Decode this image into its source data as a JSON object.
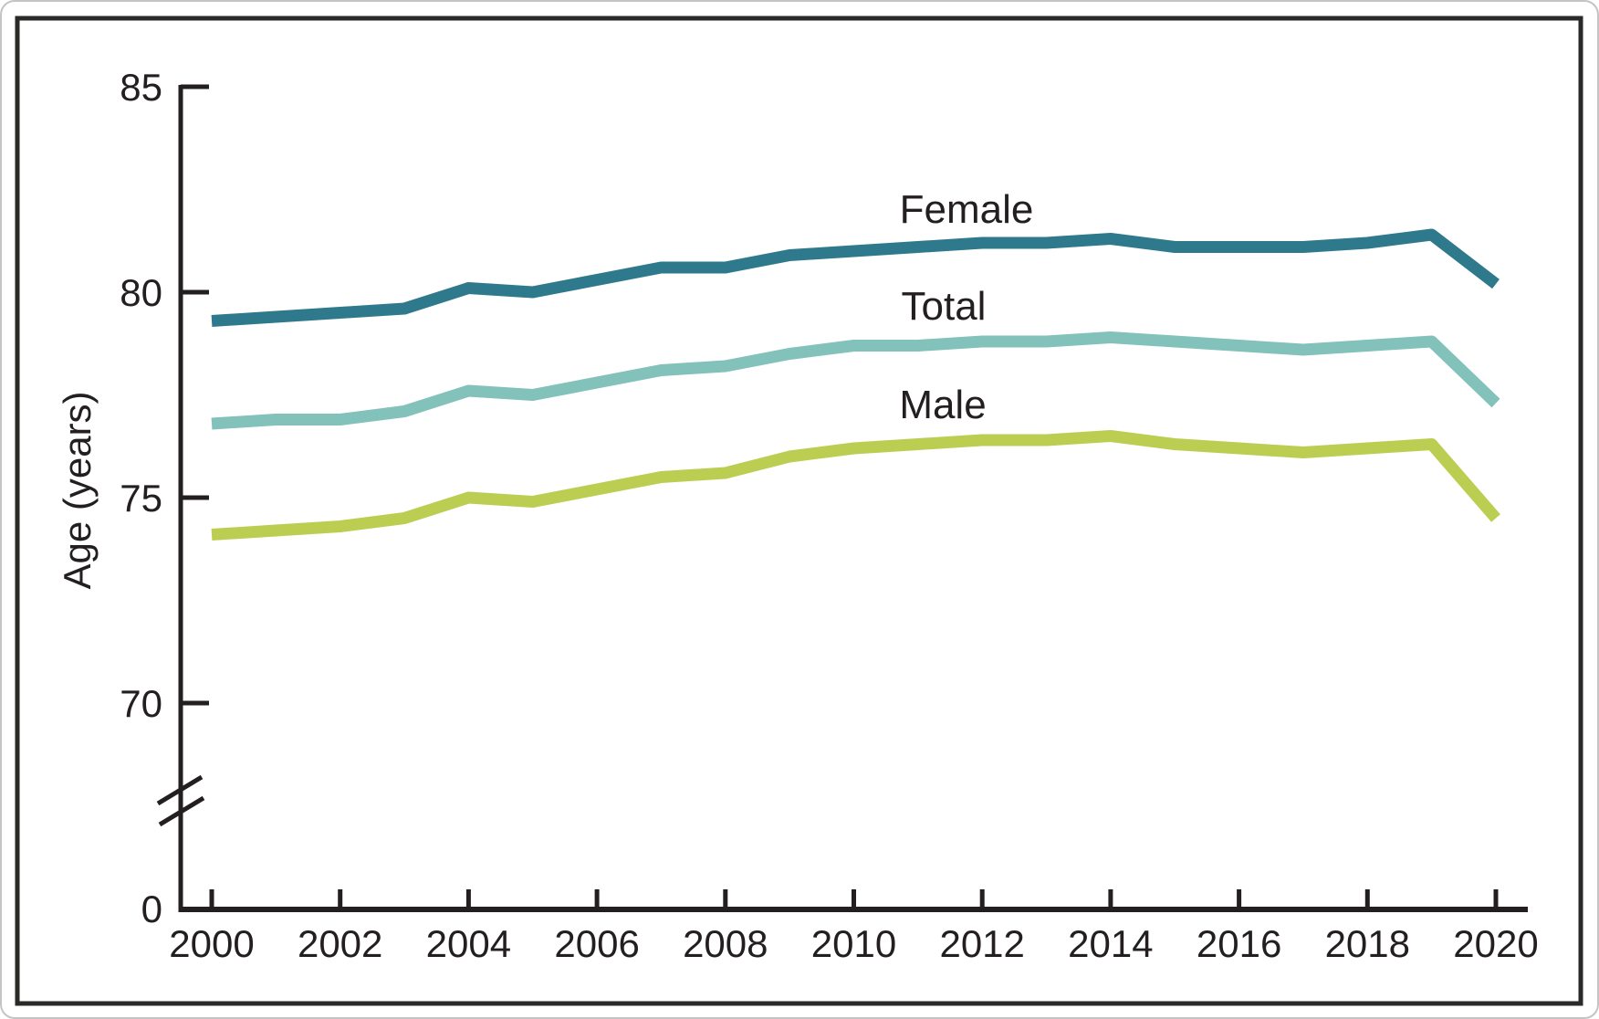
{
  "figure": {
    "background": "#ffffff",
    "frame_color": "#2b2a29",
    "axis_color": "#231f20",
    "text_color": "#231f20"
  },
  "chart_data": {
    "type": "line",
    "title": "",
    "xlabel": "",
    "ylabel": "Age (years)",
    "grid": false,
    "legend": "inline labels above each line",
    "y_axis": {
      "tick_values": [
        85,
        80,
        75,
        70
      ],
      "origin_label": "0",
      "has_axis_break": true,
      "display_range_upper": [
        70,
        85
      ],
      "ylim": [
        0,
        85
      ]
    },
    "x_axis": {
      "tick_values": [
        2000,
        2002,
        2004,
        2006,
        2008,
        2010,
        2012,
        2014,
        2016,
        2018,
        2020
      ]
    },
    "x": [
      2000,
      2001,
      2002,
      2003,
      2004,
      2005,
      2006,
      2007,
      2008,
      2009,
      2010,
      2011,
      2012,
      2013,
      2014,
      2015,
      2016,
      2017,
      2018,
      2019,
      2020
    ],
    "series": [
      {
        "name": "Female",
        "color": "#2e7a8c",
        "values": [
          79.3,
          79.4,
          79.5,
          79.6,
          80.1,
          80.0,
          80.3,
          80.6,
          80.6,
          80.9,
          81.0,
          81.1,
          81.2,
          81.2,
          81.3,
          81.1,
          81.1,
          81.1,
          81.2,
          81.4,
          80.2
        ]
      },
      {
        "name": "Total",
        "color": "#82c2bb",
        "values": [
          76.8,
          76.9,
          76.9,
          77.1,
          77.6,
          77.5,
          77.8,
          78.1,
          78.2,
          78.5,
          78.7,
          78.7,
          78.8,
          78.8,
          78.9,
          78.8,
          78.7,
          78.6,
          78.7,
          78.8,
          77.3
        ]
      },
      {
        "name": "Male",
        "color": "#bcce52",
        "values": [
          74.1,
          74.2,
          74.3,
          74.5,
          75.0,
          74.9,
          75.2,
          75.5,
          75.6,
          76.0,
          76.2,
          76.3,
          76.4,
          76.4,
          76.5,
          76.3,
          76.2,
          76.1,
          76.2,
          76.3,
          74.5
        ]
      }
    ]
  }
}
